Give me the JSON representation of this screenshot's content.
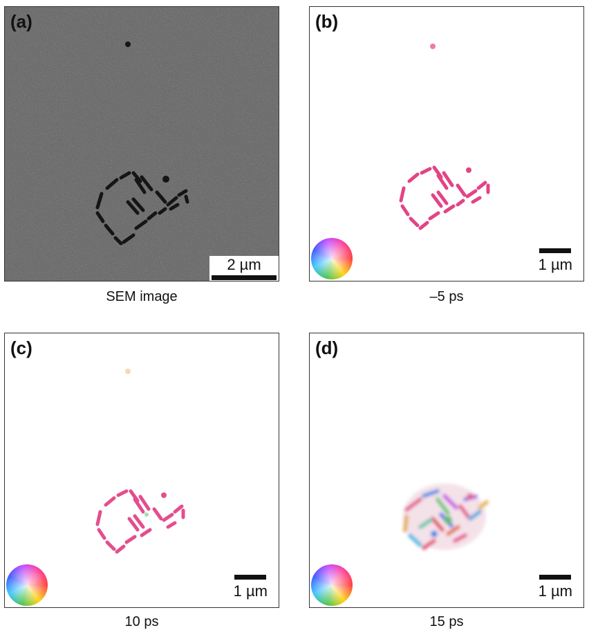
{
  "panels": [
    {
      "label": "(a)",
      "caption": "SEM image",
      "scale_label": "2 µm"
    },
    {
      "label": "(b)",
      "caption": "–5 ps",
      "scale_label": "1 µm"
    },
    {
      "label": "(c)",
      "caption": "10 ps",
      "scale_label": "1 µm"
    },
    {
      "label": "(d)",
      "caption": "15 ps",
      "scale_label": "1 µm"
    }
  ],
  "colors": {
    "sem_background": "#6f6f6f",
    "sem_particles": "#1a1a1a",
    "signal": "#e0307a"
  }
}
